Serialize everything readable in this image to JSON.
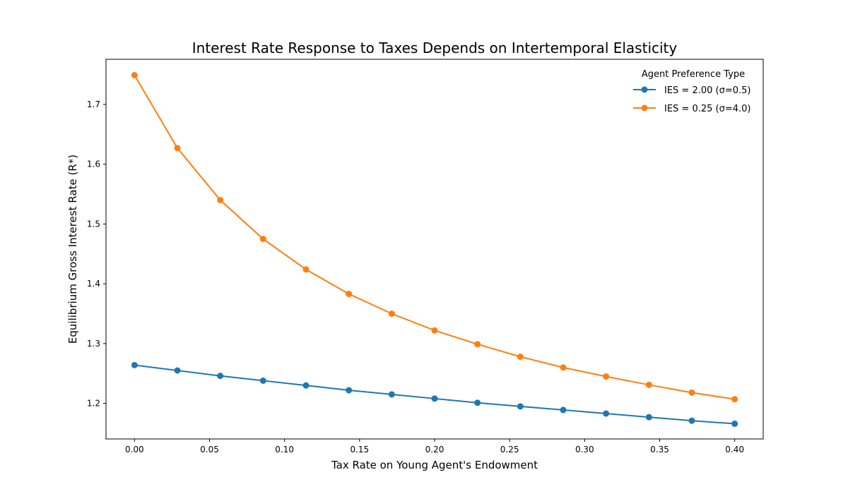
{
  "chart_data": {
    "type": "line",
    "title": "Interest Rate Response to Taxes Depends on Intertemporal Elasticity",
    "xlabel": "Tax Rate on Young Agent's Endowment",
    "ylabel": "Equilibrium Gross Interest Rate (R*)",
    "xlim": [
      -0.019,
      0.419
    ],
    "ylim": [
      1.1405,
      1.7755
    ],
    "xticks": [
      0.0,
      0.05,
      0.1,
      0.15,
      0.2,
      0.25,
      0.3,
      0.35,
      0.4
    ],
    "xtick_labels": [
      "0.00",
      "0.05",
      "0.10",
      "0.15",
      "0.20",
      "0.25",
      "0.30",
      "0.35",
      "0.40"
    ],
    "yticks": [
      1.2,
      1.3,
      1.4,
      1.5,
      1.6,
      1.7
    ],
    "ytick_labels": [
      "1.2",
      "1.3",
      "1.4",
      "1.5",
      "1.6",
      "1.7"
    ],
    "grid": false,
    "legend": {
      "title": "Agent Preference Type",
      "placement": "top-right"
    },
    "x": [
      0.0,
      0.02857,
      0.05714,
      0.08571,
      0.11429,
      0.14286,
      0.17143,
      0.2,
      0.22857,
      0.25714,
      0.28571,
      0.31429,
      0.34286,
      0.37143,
      0.4
    ],
    "series": [
      {
        "name": "IES = 2.00 (σ=0.5)",
        "color": "#1f77b4",
        "values": [
          1.264,
          1.255,
          1.246,
          1.238,
          1.23,
          1.222,
          1.215,
          1.208,
          1.201,
          1.195,
          1.189,
          1.183,
          1.177,
          1.171,
          1.166
        ]
      },
      {
        "name": "IES = 0.25 (σ=4.0)",
        "color": "#ff7f0e",
        "values": [
          1.749,
          1.627,
          1.54,
          1.475,
          1.424,
          1.383,
          1.35,
          1.322,
          1.299,
          1.278,
          1.26,
          1.245,
          1.231,
          1.218,
          1.207
        ]
      }
    ]
  }
}
